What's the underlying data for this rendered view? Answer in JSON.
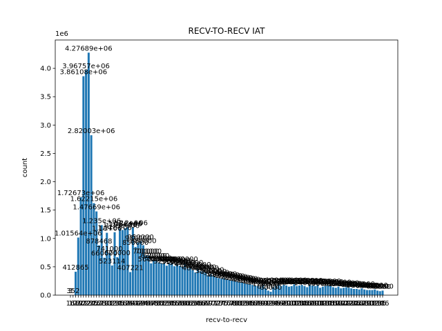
{
  "chart_data": {
    "type": "bar",
    "title": "RECV-TO-RECV IAT",
    "xlabel": "recv-to-recv",
    "ylabel": "count",
    "y_offset_text": "1e6",
    "ylim": [
      0,
      4500000
    ],
    "y_ticks": [
      0,
      500000,
      1000000,
      1500000,
      2000000,
      2500000,
      3000000,
      3500000,
      4000000
    ],
    "y_tick_labels": [
      "0.0",
      "0.5",
      "1.0",
      "1.5",
      "2.0",
      "2.5",
      "3.0",
      "3.5",
      "4.0"
    ],
    "bar_color": "#1f77b4",
    "categories": [
      16,
      17,
      18,
      19,
      20,
      21,
      22,
      23,
      24,
      25,
      26,
      27,
      28,
      29,
      30,
      31,
      32,
      33,
      34,
      35,
      36,
      37,
      38,
      39,
      40,
      41,
      42,
      43,
      44,
      45,
      46,
      47,
      48,
      49,
      50,
      51,
      52,
      53,
      54,
      55,
      56,
      57,
      58,
      59,
      60,
      61,
      62,
      63,
      64,
      65,
      66,
      67,
      68,
      69,
      70,
      71,
      72,
      73,
      74,
      75,
      76,
      77,
      78,
      79,
      80,
      81,
      82,
      83,
      84,
      85,
      86,
      87,
      88,
      89,
      90,
      91,
      92,
      93,
      94,
      95,
      96,
      97,
      98,
      99,
      100,
      101,
      102,
      103,
      104,
      105,
      106,
      107,
      108,
      109,
      110,
      111,
      112,
      113,
      114,
      115,
      116,
      117,
      118,
      119,
      120,
      121,
      122,
      123,
      124,
      125,
      126,
      127,
      128,
      129,
      130,
      131,
      132,
      133,
      134,
      135,
      136
    ],
    "values": [
      3,
      352,
      412865,
      1015640,
      1726730,
      3861080,
      3967570,
      4276890,
      2820030,
      1622150,
      1476690,
      878468,
      1235000,
      660000,
      1100000,
      741000,
      523114,
      1110000,
      670000,
      1170000,
      1150000,
      1180000,
      1200000,
      407221,
      1200000,
      850000,
      930000,
      950000,
      880000,
      700000,
      700000,
      560000,
      620000,
      620000,
      580000,
      560000,
      560000,
      520000,
      560000,
      560000,
      510000,
      540000,
      520000,
      500000,
      560000,
      470000,
      500000,
      440000,
      400000,
      460000,
      420000,
      420000,
      400000,
      350000,
      370000,
      340000,
      320000,
      300000,
      290000,
      300000,
      280000,
      270000,
      260000,
      250000,
      240000,
      230000,
      220000,
      210000,
      200000,
      190000,
      180000,
      170000,
      160000,
      150000,
      180000,
      120000,
      80000,
      60000,
      140000,
      170000,
      190000,
      160000,
      180000,
      170000,
      150000,
      160000,
      190000,
      160000,
      170000,
      180000,
      160000,
      140000,
      180000,
      170000,
      160000,
      170000,
      130000,
      150000,
      160000,
      170000,
      160000,
      140000,
      130000,
      150000,
      120000,
      130000,
      140000,
      130000,
      120000,
      110000,
      110000,
      100000,
      120000,
      100000,
      90000,
      90000,
      90000,
      100000,
      80000,
      70000,
      80000
    ],
    "x_tick_labels": [
      "16",
      "17",
      "18",
      "19",
      "20",
      "21",
      "22",
      "23",
      "24",
      "25",
      "26",
      "27",
      "28",
      "29",
      "30",
      "31",
      "32",
      "33",
      "34",
      "35",
      "36",
      "37",
      "38",
      "39",
      "40",
      "41",
      "42",
      "43",
      "44",
      "45",
      "46",
      "47",
      "48",
      "49",
      "50",
      "51",
      "52",
      "53",
      "54",
      "55",
      "56",
      "57",
      "58",
      "59",
      "60",
      "61",
      "62",
      "63",
      "64",
      "65",
      "66",
      "67",
      "68",
      "69",
      "70",
      "71",
      "72",
      "73",
      "74",
      "75",
      "76",
      "77",
      "78",
      "79",
      "80",
      "81",
      "82",
      "83",
      "84",
      "85",
      "86",
      "87",
      "88",
      "89",
      "90",
      "91",
      "92",
      "93",
      "94",
      "95",
      "96",
      "97",
      "98",
      "99",
      "100",
      "101",
      "102",
      "103",
      "104",
      "105",
      "106",
      "107",
      "108",
      "109",
      "110",
      "111",
      "112",
      "113",
      "114",
      "115",
      "116",
      "117",
      "118",
      "119",
      "120",
      "121",
      "122",
      "123",
      "124",
      "125",
      "126",
      "127",
      "128",
      "129",
      "130",
      "131",
      "132",
      "133",
      "134",
      "135",
      "136"
    ],
    "data_labels": [
      "3",
      "352",
      "412865",
      "1.01564e+06",
      "1.72673e+06",
      "3.86108e+06",
      "3.96757e+06",
      "4.27689e+06",
      "2.82003e+06",
      "1.62215e+06",
      "1.47669e+06",
      "878468",
      "1.235e+06",
      "660000",
      "1.1e+06",
      "741000",
      "523114",
      "1.11e+06",
      "670000",
      "1.17e+06",
      "1.15e+06",
      "1.18e+06",
      "1.2e+06",
      "407221",
      "1.2e+06",
      "850000",
      "930000",
      "950000",
      "880000",
      "700000",
      "700000",
      "560000",
      "620000",
      "620000",
      "580000",
      "560000",
      "560000",
      "520000",
      "560000",
      "560000",
      "510000",
      "540000",
      "520000",
      "500000",
      "560000",
      "470000",
      "500000",
      "440000",
      "400000",
      "460000",
      "420000",
      "420000",
      "400000",
      "350000",
      "370000",
      "340000",
      "320000",
      "300000",
      "290000",
      "300000",
      "280000",
      "270000",
      "260000",
      "250000",
      "240000",
      "230000",
      "220000",
      "210000",
      "200000",
      "190000",
      "180000",
      "170000",
      "160000",
      "150000",
      "180000",
      "120000",
      "80000",
      "60000",
      "140000",
      "170000",
      "190000",
      "160000",
      "180000",
      "170000",
      "150000",
      "160000",
      "190000",
      "160000",
      "170000",
      "180000",
      "160000",
      "140000",
      "180000",
      "170000",
      "160000",
      "170000",
      "130000",
      "150000",
      "160000",
      "170000",
      "160000",
      "140000",
      "130000",
      "150000",
      "120000",
      "130000",
      "140000",
      "130000",
      "120000",
      "110000",
      "110000",
      "100000",
      "120000",
      "100000",
      "90000",
      "90000",
      "90000",
      "100000",
      "80000",
      "70000",
      "80000"
    ]
  }
}
